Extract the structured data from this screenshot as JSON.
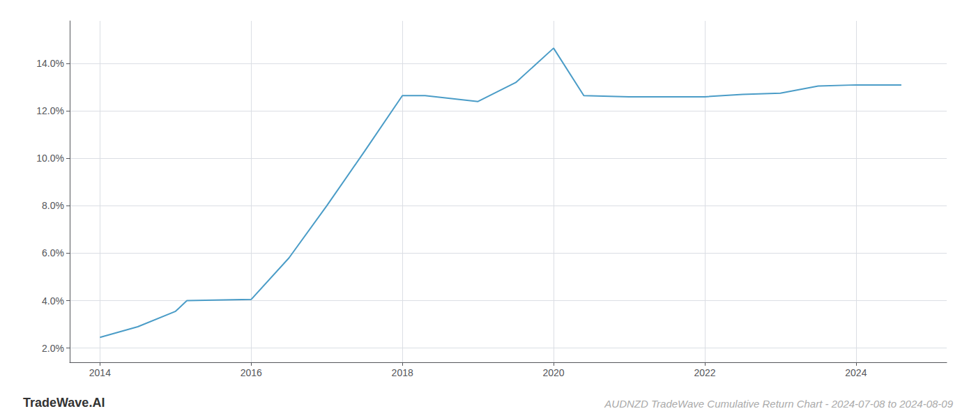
{
  "chart_data": {
    "type": "line",
    "title": "AUDNZD TradeWave Cumulative Return Chart - 2024-07-08 to 2024-08-09",
    "annotations": [
      "TradeWave.AI"
    ],
    "x": [
      2014.0,
      2014.5,
      2015.0,
      2015.15,
      2016.0,
      2016.5,
      2017.0,
      2017.5,
      2018.0,
      2018.3,
      2019.0,
      2019.5,
      2020.0,
      2020.4,
      2021.0,
      2021.5,
      2022.0,
      2022.5,
      2023.0,
      2023.5,
      2024.0,
      2024.6
    ],
    "values": [
      2.45,
      2.9,
      3.55,
      4.0,
      4.05,
      5.8,
      8.0,
      10.3,
      12.65,
      12.65,
      12.4,
      13.2,
      14.65,
      12.65,
      12.6,
      12.6,
      12.6,
      12.7,
      12.75,
      13.05,
      13.1,
      13.1
    ],
    "color": "#4a9cc7",
    "xlim": [
      2013.6,
      2025.2
    ],
    "ylim": [
      1.4,
      15.8
    ],
    "xticks": [
      2014,
      2016,
      2018,
      2020,
      2022,
      2024
    ],
    "yticks": [
      {
        "value": 2.0,
        "label": "2.0%"
      },
      {
        "value": 4.0,
        "label": "4.0%"
      },
      {
        "value": 6.0,
        "label": "6.0%"
      },
      {
        "value": 8.0,
        "label": "8.0%"
      },
      {
        "value": 10.0,
        "label": "10.0%"
      },
      {
        "value": 12.0,
        "label": "12.0%"
      },
      {
        "value": 14.0,
        "label": "14.0%"
      }
    ],
    "grid": true
  }
}
